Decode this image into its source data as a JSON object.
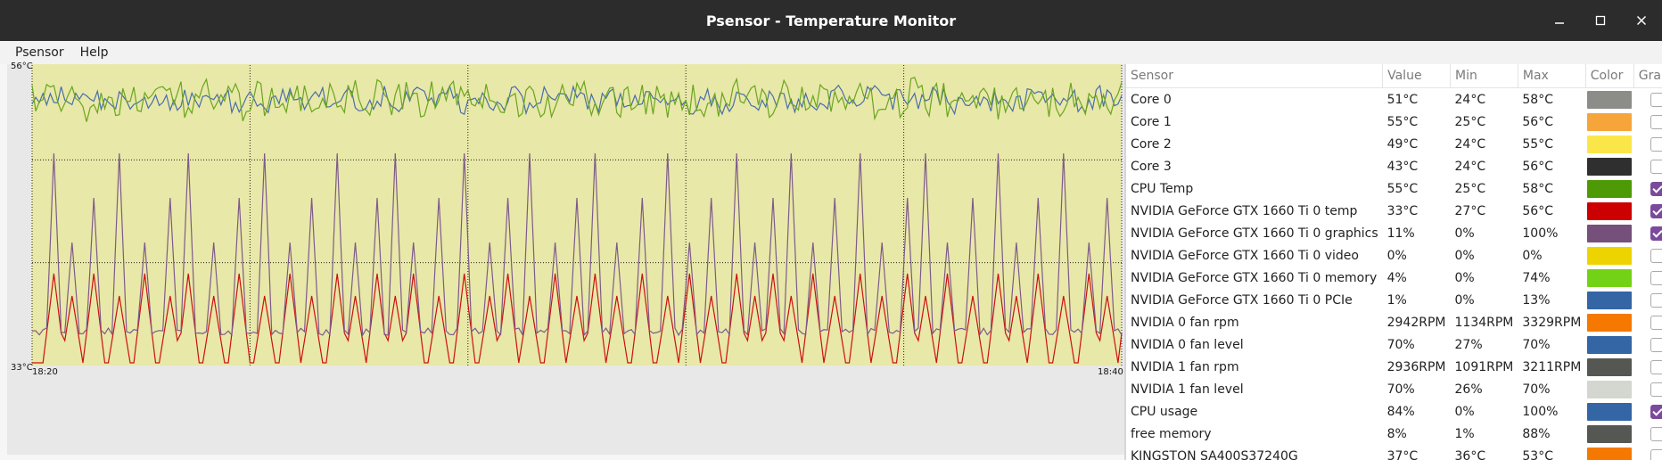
{
  "window": {
    "title": "Psensor - Temperature Monitor"
  },
  "menu": {
    "items": [
      "Psensor",
      "Help"
    ]
  },
  "graph": {
    "y_max_label": "56°C",
    "y_min_label": "33°C",
    "x_start_label": "18:20",
    "x_end_label": "18:40",
    "background_color": "#e8e8a8",
    "series_colors": {
      "cpu_temp_green": "#6aa51e",
      "cpu_usage_blue": "#4a6ea8",
      "gpu_graphics_purple": "#7e5a8a",
      "gpu_temp_red": "#cc1111"
    }
  },
  "sensors": {
    "headers": [
      "Sensor",
      "Value",
      "Min",
      "Max",
      "Color",
      "Graph"
    ],
    "rows": [
      {
        "name": "Core 0",
        "value": "51°C",
        "min": "24°C",
        "max": "58°C",
        "color": "#8c8c88",
        "graph": false
      },
      {
        "name": "Core 1",
        "value": "55°C",
        "min": "25°C",
        "max": "56°C",
        "color": "#f5a53a",
        "graph": false
      },
      {
        "name": "Core 2",
        "value": "49°C",
        "min": "24°C",
        "max": "55°C",
        "color": "#fbe64a",
        "graph": false
      },
      {
        "name": "Core 3",
        "value": "43°C",
        "min": "24°C",
        "max": "56°C",
        "color": "#2f2f2f",
        "graph": false
      },
      {
        "name": "CPU Temp",
        "value": "55°C",
        "min": "25°C",
        "max": "58°C",
        "color": "#4e9a06",
        "graph": true
      },
      {
        "name": "NVIDIA GeForce GTX 1660 Ti 0 temp",
        "value": "33°C",
        "min": "27°C",
        "max": "56°C",
        "color": "#cc0000",
        "graph": true
      },
      {
        "name": "NVIDIA GeForce GTX 1660 Ti 0 graphics",
        "value": "11%",
        "min": "0%",
        "max": "100%",
        "color": "#75507b",
        "graph": true
      },
      {
        "name": "NVIDIA GeForce GTX 1660 Ti 0 video",
        "value": "0%",
        "min": "0%",
        "max": "0%",
        "color": "#edd400",
        "graph": false
      },
      {
        "name": "NVIDIA GeForce GTX 1660 Ti 0 memory",
        "value": "4%",
        "min": "0%",
        "max": "74%",
        "color": "#73d216",
        "graph": false
      },
      {
        "name": "NVIDIA GeForce GTX 1660 Ti 0 PCIe",
        "value": "1%",
        "min": "0%",
        "max": "13%",
        "color": "#3465a4",
        "graph": false
      },
      {
        "name": "NVIDIA 0 fan rpm",
        "value": "2942RPM",
        "min": "1134RPM",
        "max": "3329RPM",
        "color": "#f57900",
        "graph": false
      },
      {
        "name": "NVIDIA 0 fan level",
        "value": "70%",
        "min": "27%",
        "max": "70%",
        "color": "#3465a4",
        "graph": false
      },
      {
        "name": "NVIDIA 1 fan rpm",
        "value": "2936RPM",
        "min": "1091RPM",
        "max": "3211RPM",
        "color": "#555753",
        "graph": false
      },
      {
        "name": "NVIDIA 1 fan level",
        "value": "70%",
        "min": "26%",
        "max": "70%",
        "color": "#d3d7cf",
        "graph": false
      },
      {
        "name": "CPU usage",
        "value": "84%",
        "min": "0%",
        "max": "100%",
        "color": "#3465a4",
        "graph": true
      },
      {
        "name": "free memory",
        "value": "8%",
        "min": "1%",
        "max": "88%",
        "color": "#555753",
        "graph": false
      },
      {
        "name": "KINGSTON SA400S37240G",
        "value": "37°C",
        "min": "36°C",
        "max": "53°C",
        "color": "#f57900",
        "graph": false
      }
    ]
  }
}
